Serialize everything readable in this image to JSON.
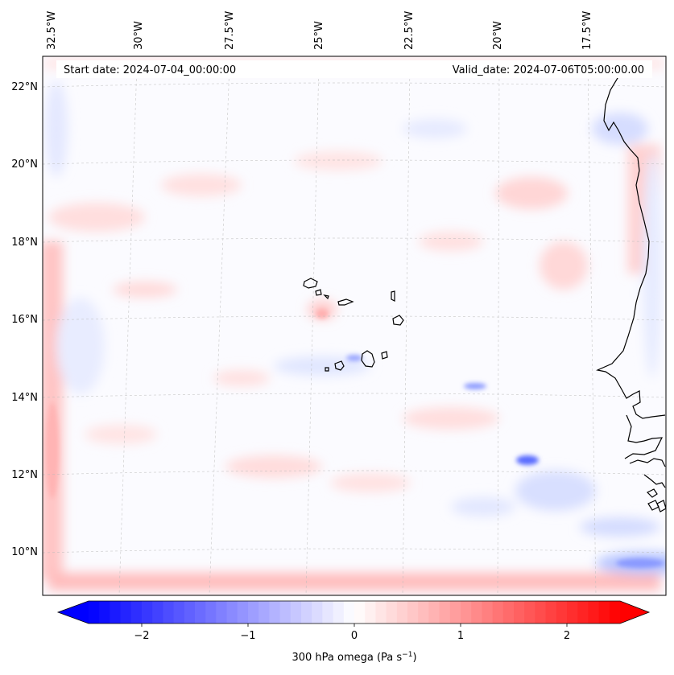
{
  "map": {
    "start_date": "Start date: 2024-07-04_00:00:00",
    "valid_date": "Valid_date: 2024-07-06T05:00:00.00",
    "lon_labels": [
      "32.5°W",
      "30°W",
      "27.5°W",
      "25°W",
      "22.5°W",
      "20°W",
      "17.5°W"
    ],
    "lat_labels": [
      "22°N",
      "20°N",
      "18°N",
      "16°N",
      "14°N",
      "12°N",
      "10°N"
    ],
    "variable": "300 hPa omega"
  },
  "colorbar": {
    "label": "300 hPa omega (Pa s",
    "label_unit_exp": "−1",
    "label_close": ")",
    "ticks": [
      {
        "value": -2,
        "label": "−2"
      },
      {
        "value": -1,
        "label": "−1"
      },
      {
        "value": 0,
        "label": "0"
      },
      {
        "value": 1,
        "label": "1"
      },
      {
        "value": 2,
        "label": "2"
      }
    ],
    "vmin": -2.5,
    "vmax": 2.5,
    "levels": 50,
    "colormap": "bwr",
    "color_min": "#0000ff",
    "color_mid": "#ffffff",
    "color_max": "#ff0000"
  },
  "colors": {
    "coast": "#000000",
    "grid": "#bbbbbb"
  }
}
